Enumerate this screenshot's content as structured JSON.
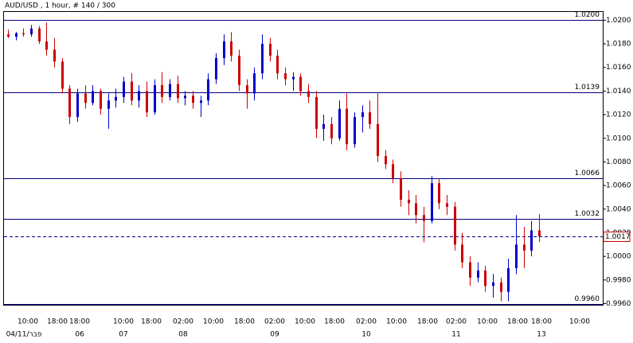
{
  "chart_data": {
    "type": "candlestick",
    "title": "AUD/USD , 1 hour, # 140 / 300",
    "up_color": "#0000cc",
    "down_color": "#cc0000",
    "open": [
      1.0188,
      1.0186,
      1.0189,
      1.0188,
      1.0193,
      1.0182,
      1.0175,
      1.0165,
      1.0142,
      1.0118,
      1.0138,
      1.013,
      1.014,
      1.0125,
      1.0132,
      1.0135,
      1.0148,
      1.0132,
      1.014,
      1.0122,
      1.0145,
      1.0135,
      1.0146,
      1.0134,
      1.0136,
      1.013,
      1.0132,
      1.015,
      1.0168,
      1.0182,
      1.017,
      1.0145,
      1.0138,
      1.0155,
      1.018,
      1.017,
      1.0155,
      1.015,
      1.0152,
      1.014,
      1.0135,
      1.0108,
      1.0112,
      1.01,
      1.0125,
      1.0095,
      1.0118,
      1.0122,
      1.0112,
      1.0085,
      1.0078,
      1.0066,
      1.0048,
      1.0045,
      1.0035,
      1.003,
      1.0062,
      1.0045,
      1.0042,
      1.001,
      0.9995,
      0.9982,
      0.9988,
      0.9975,
      0.9978,
      0.997,
      0.999,
      1.001,
      1.0005,
      1.0022
    ],
    "high": [
      1.0192,
      1.019,
      1.0193,
      1.0196,
      1.0195,
      1.0198,
      1.0185,
      1.0168,
      1.0145,
      1.0142,
      1.0145,
      1.0145,
      1.0142,
      1.0138,
      1.0142,
      1.0152,
      1.0155,
      1.0145,
      1.0148,
      1.015,
      1.0156,
      1.015,
      1.0153,
      1.014,
      1.014,
      1.0136,
      1.0155,
      1.0172,
      1.0188,
      1.019,
      1.0175,
      1.015,
      1.016,
      1.0188,
      1.0185,
      1.0175,
      1.016,
      1.0156,
      1.0155,
      1.0146,
      1.014,
      1.012,
      1.0118,
      1.0132,
      1.0138,
      1.0122,
      1.0128,
      1.0132,
      1.0138,
      1.009,
      1.0082,
      1.0072,
      1.0056,
      1.0052,
      1.0042,
      1.0068,
      1.0066,
      1.0052,
      1.0046,
      1.002,
      1.0,
      0.9995,
      0.9992,
      0.9985,
      0.9982,
      0.9998,
      1.0035,
      1.0025,
      1.003,
      1.0036
    ],
    "low": [
      1.0185,
      1.0183,
      1.0186,
      1.0186,
      1.018,
      1.017,
      1.016,
      1.0138,
      1.0112,
      1.0114,
      1.0125,
      1.0128,
      1.012,
      1.0108,
      1.0126,
      1.013,
      1.0128,
      1.0126,
      1.0118,
      1.012,
      1.013,
      1.0132,
      1.013,
      1.0128,
      1.0125,
      1.0118,
      1.0128,
      1.0146,
      1.0162,
      1.0165,
      1.014,
      1.0125,
      1.0132,
      1.015,
      1.0165,
      1.015,
      1.0145,
      1.014,
      1.0136,
      1.013,
      1.01,
      1.0098,
      1.0095,
      1.0098,
      1.009,
      1.0092,
      1.0105,
      1.0108,
      1.008,
      1.0074,
      1.0062,
      1.0042,
      1.0035,
      1.0028,
      1.0012,
      1.0028,
      1.004,
      1.0035,
      1.0005,
      0.999,
      0.9975,
      0.9978,
      0.997,
      0.9965,
      0.9962,
      0.9962,
      0.9985,
      0.999,
      1.0,
      1.0012
    ],
    "close": [
      1.0186,
      1.0189,
      1.0188,
      1.0193,
      1.0182,
      1.0175,
      1.0165,
      1.0142,
      1.0118,
      1.0138,
      1.013,
      1.014,
      1.0125,
      1.0132,
      1.0135,
      1.0148,
      1.0132,
      1.014,
      1.0122,
      1.0145,
      1.0135,
      1.0146,
      1.0134,
      1.0136,
      1.013,
      1.0132,
      1.015,
      1.0168,
      1.0182,
      1.017,
      1.0145,
      1.0138,
      1.0155,
      1.018,
      1.017,
      1.0155,
      1.015,
      1.0152,
      1.014,
      1.0135,
      1.0108,
      1.0112,
      1.01,
      1.0125,
      1.0095,
      1.0118,
      1.0122,
      1.0112,
      1.0085,
      1.0078,
      1.0066,
      1.0048,
      1.0045,
      1.0035,
      1.003,
      1.0062,
      1.0045,
      1.0042,
      1.001,
      0.9995,
      0.9982,
      0.9988,
      0.9975,
      0.9978,
      0.997,
      0.999,
      1.001,
      1.0005,
      1.0022,
      1.0017
    ],
    "ylim": [
      0.9959,
      1.0207
    ],
    "yticks": [
      {
        "value": 1.02,
        "label": "1.0200"
      },
      {
        "value": 1.018,
        "label": "1.0180"
      },
      {
        "value": 1.016,
        "label": "1.0160"
      },
      {
        "value": 1.014,
        "label": "1.0140"
      },
      {
        "value": 1.012,
        "label": "1.0120"
      },
      {
        "value": 1.01,
        "label": "1.0100"
      },
      {
        "value": 1.008,
        "label": "1.0080"
      },
      {
        "value": 1.006,
        "label": "1.0060"
      },
      {
        "value": 1.004,
        "label": "1.0040"
      },
      {
        "value": 1.002,
        "label": "1.0020"
      },
      {
        "value": 1.0,
        "label": "1.0000"
      },
      {
        "value": 0.998,
        "label": "0.9980"
      },
      {
        "value": 0.996,
        "label": "0.9960"
      }
    ],
    "levels": [
      {
        "value": 1.02,
        "label": "1.0200"
      },
      {
        "value": 1.0139,
        "label": "1.0139"
      },
      {
        "value": 1.0066,
        "label": "1.0066"
      },
      {
        "value": 1.0032,
        "label": "1.0032"
      },
      {
        "value": 0.996,
        "label": "0.9960"
      }
    ],
    "current": {
      "value": 1.0017,
      "label": "1.0017"
    },
    "x_labels": [
      "10:00",
      "18:00",
      "18:00",
      "10:00",
      "18:00",
      "02:00",
      "10:00",
      "18:00",
      "02:00",
      "10:00",
      "18:00",
      "02:00",
      "10:00",
      "18:00",
      "02:00",
      "10:00",
      "18:00",
      "18:00",
      "10:00"
    ],
    "date_labels": [
      "04/11/פבר",
      "06",
      "07",
      "08",
      "09",
      "10",
      "11",
      "13"
    ]
  }
}
